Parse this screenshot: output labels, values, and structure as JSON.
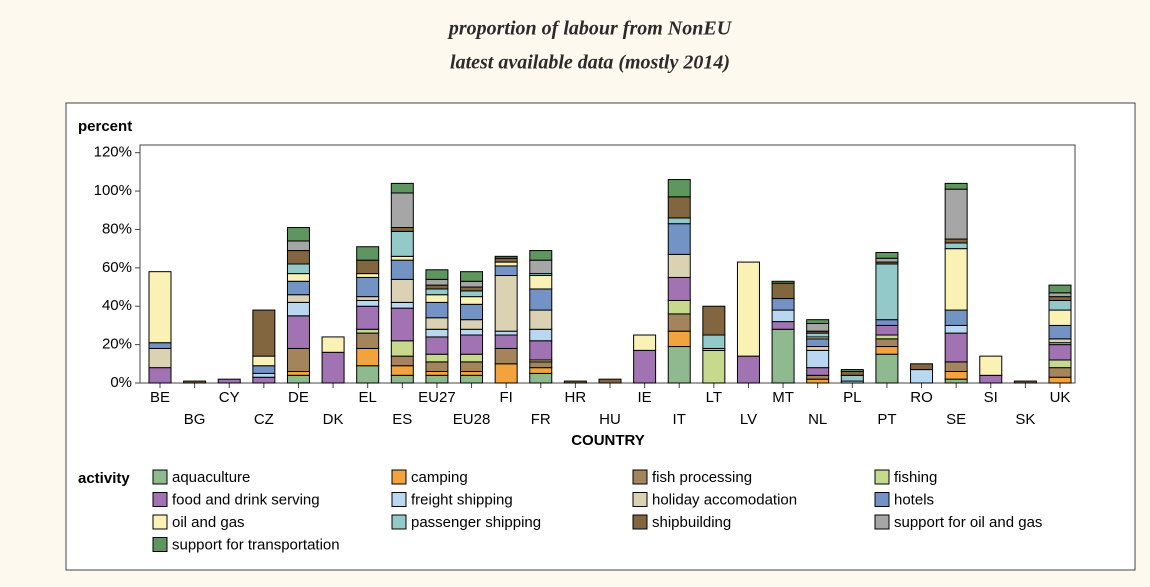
{
  "chart_data": {
    "type": "stacked-bar",
    "title": "proportion of labour from NonEU",
    "subtitle": "latest available data (mostly 2014)",
    "y_label": "percent",
    "x_label": "COUNTRY",
    "legend_title": "activity",
    "categories": [
      "BE",
      "BG",
      "CY",
      "CZ",
      "DE",
      "DK",
      "EL",
      "ES",
      "EU27",
      "EU28",
      "FI",
      "FR",
      "HR",
      "HU",
      "IE",
      "IT",
      "LT",
      "LV",
      "MT",
      "NL",
      "PL",
      "PT",
      "RO",
      "SE",
      "SI",
      "SK",
      "UK"
    ],
    "ylim": [
      0,
      124
    ],
    "yticks": [
      {
        "value": 0,
        "label": "0%"
      },
      {
        "value": 20,
        "label": "20%"
      },
      {
        "value": 40,
        "label": "40%"
      },
      {
        "value": 60,
        "label": "60%"
      },
      {
        "value": 80,
        "label": "80%"
      },
      {
        "value": 100,
        "label": "100%"
      },
      {
        "value": 120,
        "label": "120%"
      }
    ],
    "series": [
      {
        "name": "aquaculture",
        "color": "#8fb98f",
        "values": [
          0,
          0,
          0,
          0,
          4,
          0,
          9,
          4,
          4,
          4,
          0,
          5,
          0,
          0,
          0,
          19,
          0,
          0,
          28,
          0,
          0,
          15,
          0,
          2,
          0,
          0,
          0
        ]
      },
      {
        "name": "camping",
        "color": "#f3a33d",
        "values": [
          0,
          0,
          0,
          0,
          2,
          0,
          9,
          5,
          2,
          2,
          10,
          3,
          0,
          0,
          0,
          8,
          0,
          0,
          0,
          2,
          0,
          4,
          0,
          4,
          0,
          0,
          3
        ]
      },
      {
        "name": "fish processing",
        "color": "#a3845d",
        "values": [
          0,
          0,
          0,
          0,
          12,
          0,
          8,
          5,
          5,
          5,
          8,
          3,
          0,
          0,
          0,
          9,
          0,
          0,
          0,
          2,
          0,
          4,
          0,
          5,
          0,
          0,
          5
        ]
      },
      {
        "name": "fishing",
        "color": "#c7d98c",
        "values": [
          0,
          0,
          0,
          0,
          0,
          0,
          2,
          8,
          4,
          4,
          0,
          1,
          0,
          0,
          0,
          7,
          17,
          0,
          0,
          0,
          0,
          2,
          0,
          0,
          0,
          0,
          4
        ]
      },
      {
        "name": "food and drink serving",
        "color": "#a173b3",
        "values": [
          8,
          0,
          2,
          3,
          17,
          16,
          12,
          17,
          9,
          10,
          7,
          10,
          0,
          0,
          17,
          12,
          0,
          14,
          4,
          4,
          0,
          5,
          0,
          15,
          4,
          0,
          8
        ]
      },
      {
        "name": "freight shipping",
        "color": "#b9d7f0",
        "values": [
          0,
          0,
          0,
          2,
          7,
          0,
          3,
          3,
          4,
          3,
          2,
          6,
          0,
          0,
          0,
          0,
          1,
          0,
          6,
          9,
          1,
          0,
          7,
          4,
          0,
          0,
          1
        ]
      },
      {
        "name": "holiday accomodation",
        "color": "#dbd2b4",
        "values": [
          10,
          0,
          0,
          0,
          4,
          0,
          2,
          12,
          6,
          5,
          29,
          10,
          0,
          0,
          0,
          12,
          0,
          0,
          0,
          2,
          0,
          0,
          0,
          0,
          0,
          0,
          2
        ]
      },
      {
        "name": "hotels",
        "color": "#7393c4",
        "values": [
          3,
          0,
          0,
          4,
          7,
          0,
          10,
          10,
          8,
          8,
          5,
          11,
          0,
          0,
          0,
          16,
          0,
          0,
          6,
          4,
          0,
          3,
          0,
          8,
          0,
          0,
          7
        ]
      },
      {
        "name": "oil and gas",
        "color": "#faf2b4",
        "values": [
          37,
          0,
          0,
          5,
          4,
          8,
          2,
          2,
          4,
          4,
          2,
          7,
          0,
          0,
          8,
          0,
          0,
          49,
          0,
          1,
          0,
          0,
          0,
          32,
          10,
          0,
          8
        ]
      },
      {
        "name": "passenger shipping",
        "color": "#93c9c9",
        "values": [
          0,
          0,
          0,
          0,
          5,
          0,
          0,
          13,
          3,
          3,
          0,
          1,
          0,
          0,
          0,
          3,
          7,
          0,
          0,
          2,
          3,
          29,
          0,
          3,
          0,
          0,
          5
        ]
      },
      {
        "name": "shipbuilding",
        "color": "#82663f",
        "values": [
          0,
          1,
          0,
          24,
          7,
          0,
          7,
          2,
          2,
          2,
          2,
          0,
          1,
          2,
          0,
          11,
          15,
          0,
          8,
          1,
          2,
          1,
          3,
          2,
          0,
          1,
          2
        ]
      },
      {
        "name": "support for oil and gas",
        "color": "#a6a6a6",
        "values": [
          0,
          0,
          0,
          0,
          5,
          0,
          0,
          18,
          3,
          3,
          0,
          7,
          0,
          0,
          0,
          0,
          0,
          0,
          0,
          4,
          0,
          2,
          0,
          26,
          0,
          0,
          2
        ]
      },
      {
        "name": "support for transportation",
        "color": "#5f955f",
        "values": [
          0,
          0,
          0,
          0,
          7,
          0,
          7,
          5,
          5,
          5,
          1,
          5,
          0,
          0,
          0,
          9,
          0,
          0,
          1,
          2,
          1,
          3,
          0,
          3,
          0,
          0,
          4
        ]
      }
    ]
  }
}
